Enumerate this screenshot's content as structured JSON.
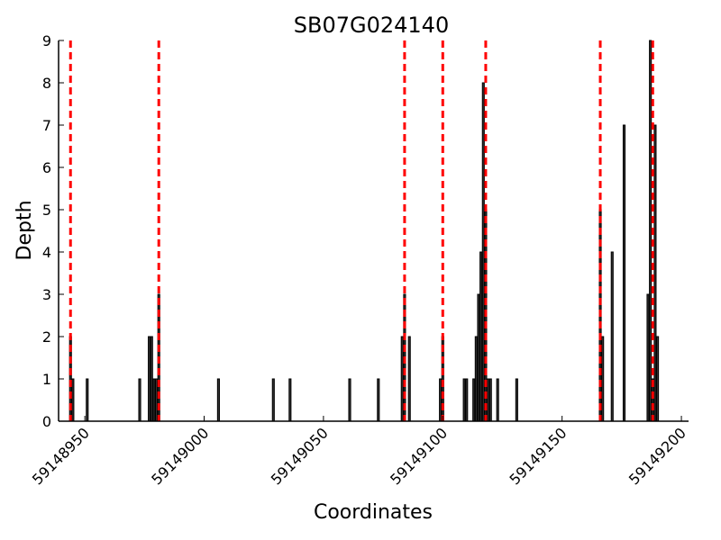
{
  "chart_data": {
    "type": "bar",
    "title": "SB07G024140",
    "xlabel": "Coordinates",
    "ylabel": "Depth",
    "xlim": [
      59148939,
      59149203
    ],
    "ylim": [
      0,
      9
    ],
    "xticks": [
      59148950,
      59149000,
      59149050,
      59149100,
      59149150,
      59149200
    ],
    "yticks": [
      0,
      1,
      2,
      3,
      4,
      5,
      6,
      7,
      8,
      9
    ],
    "grid": false,
    "bar_color": "#333333",
    "line_color": "#ff0000",
    "series": [
      {
        "x": [
          59148944,
          59148945,
          59148951,
          59148973,
          59148977,
          59148978,
          59148979,
          59148980,
          59148981,
          59149006,
          59149029,
          59149036,
          59149061,
          59149073,
          59149083,
          59149084,
          59149086,
          59149099,
          59149100,
          59149109,
          59149110,
          59149113,
          59149114,
          59149115,
          59149116,
          59149117,
          59149118,
          59149119,
          59149120,
          59149123,
          59149131,
          59149166,
          59149167,
          59149171,
          59149176,
          59149186,
          59149187,
          59149188,
          59149189,
          59149190
        ],
        "values": [
          2,
          1,
          1,
          1,
          2,
          2,
          1,
          1,
          3,
          1,
          1,
          1,
          1,
          1,
          2,
          3,
          2,
          1,
          2,
          1,
          1,
          1,
          2,
          3,
          4,
          8,
          5,
          1,
          1,
          1,
          1,
          5,
          2,
          4,
          7,
          3,
          9,
          1,
          7,
          2
        ]
      }
    ],
    "vlines": [
      59148944,
      59148981,
      59149084,
      59149100,
      59149118,
      59149166,
      59149188
    ]
  }
}
